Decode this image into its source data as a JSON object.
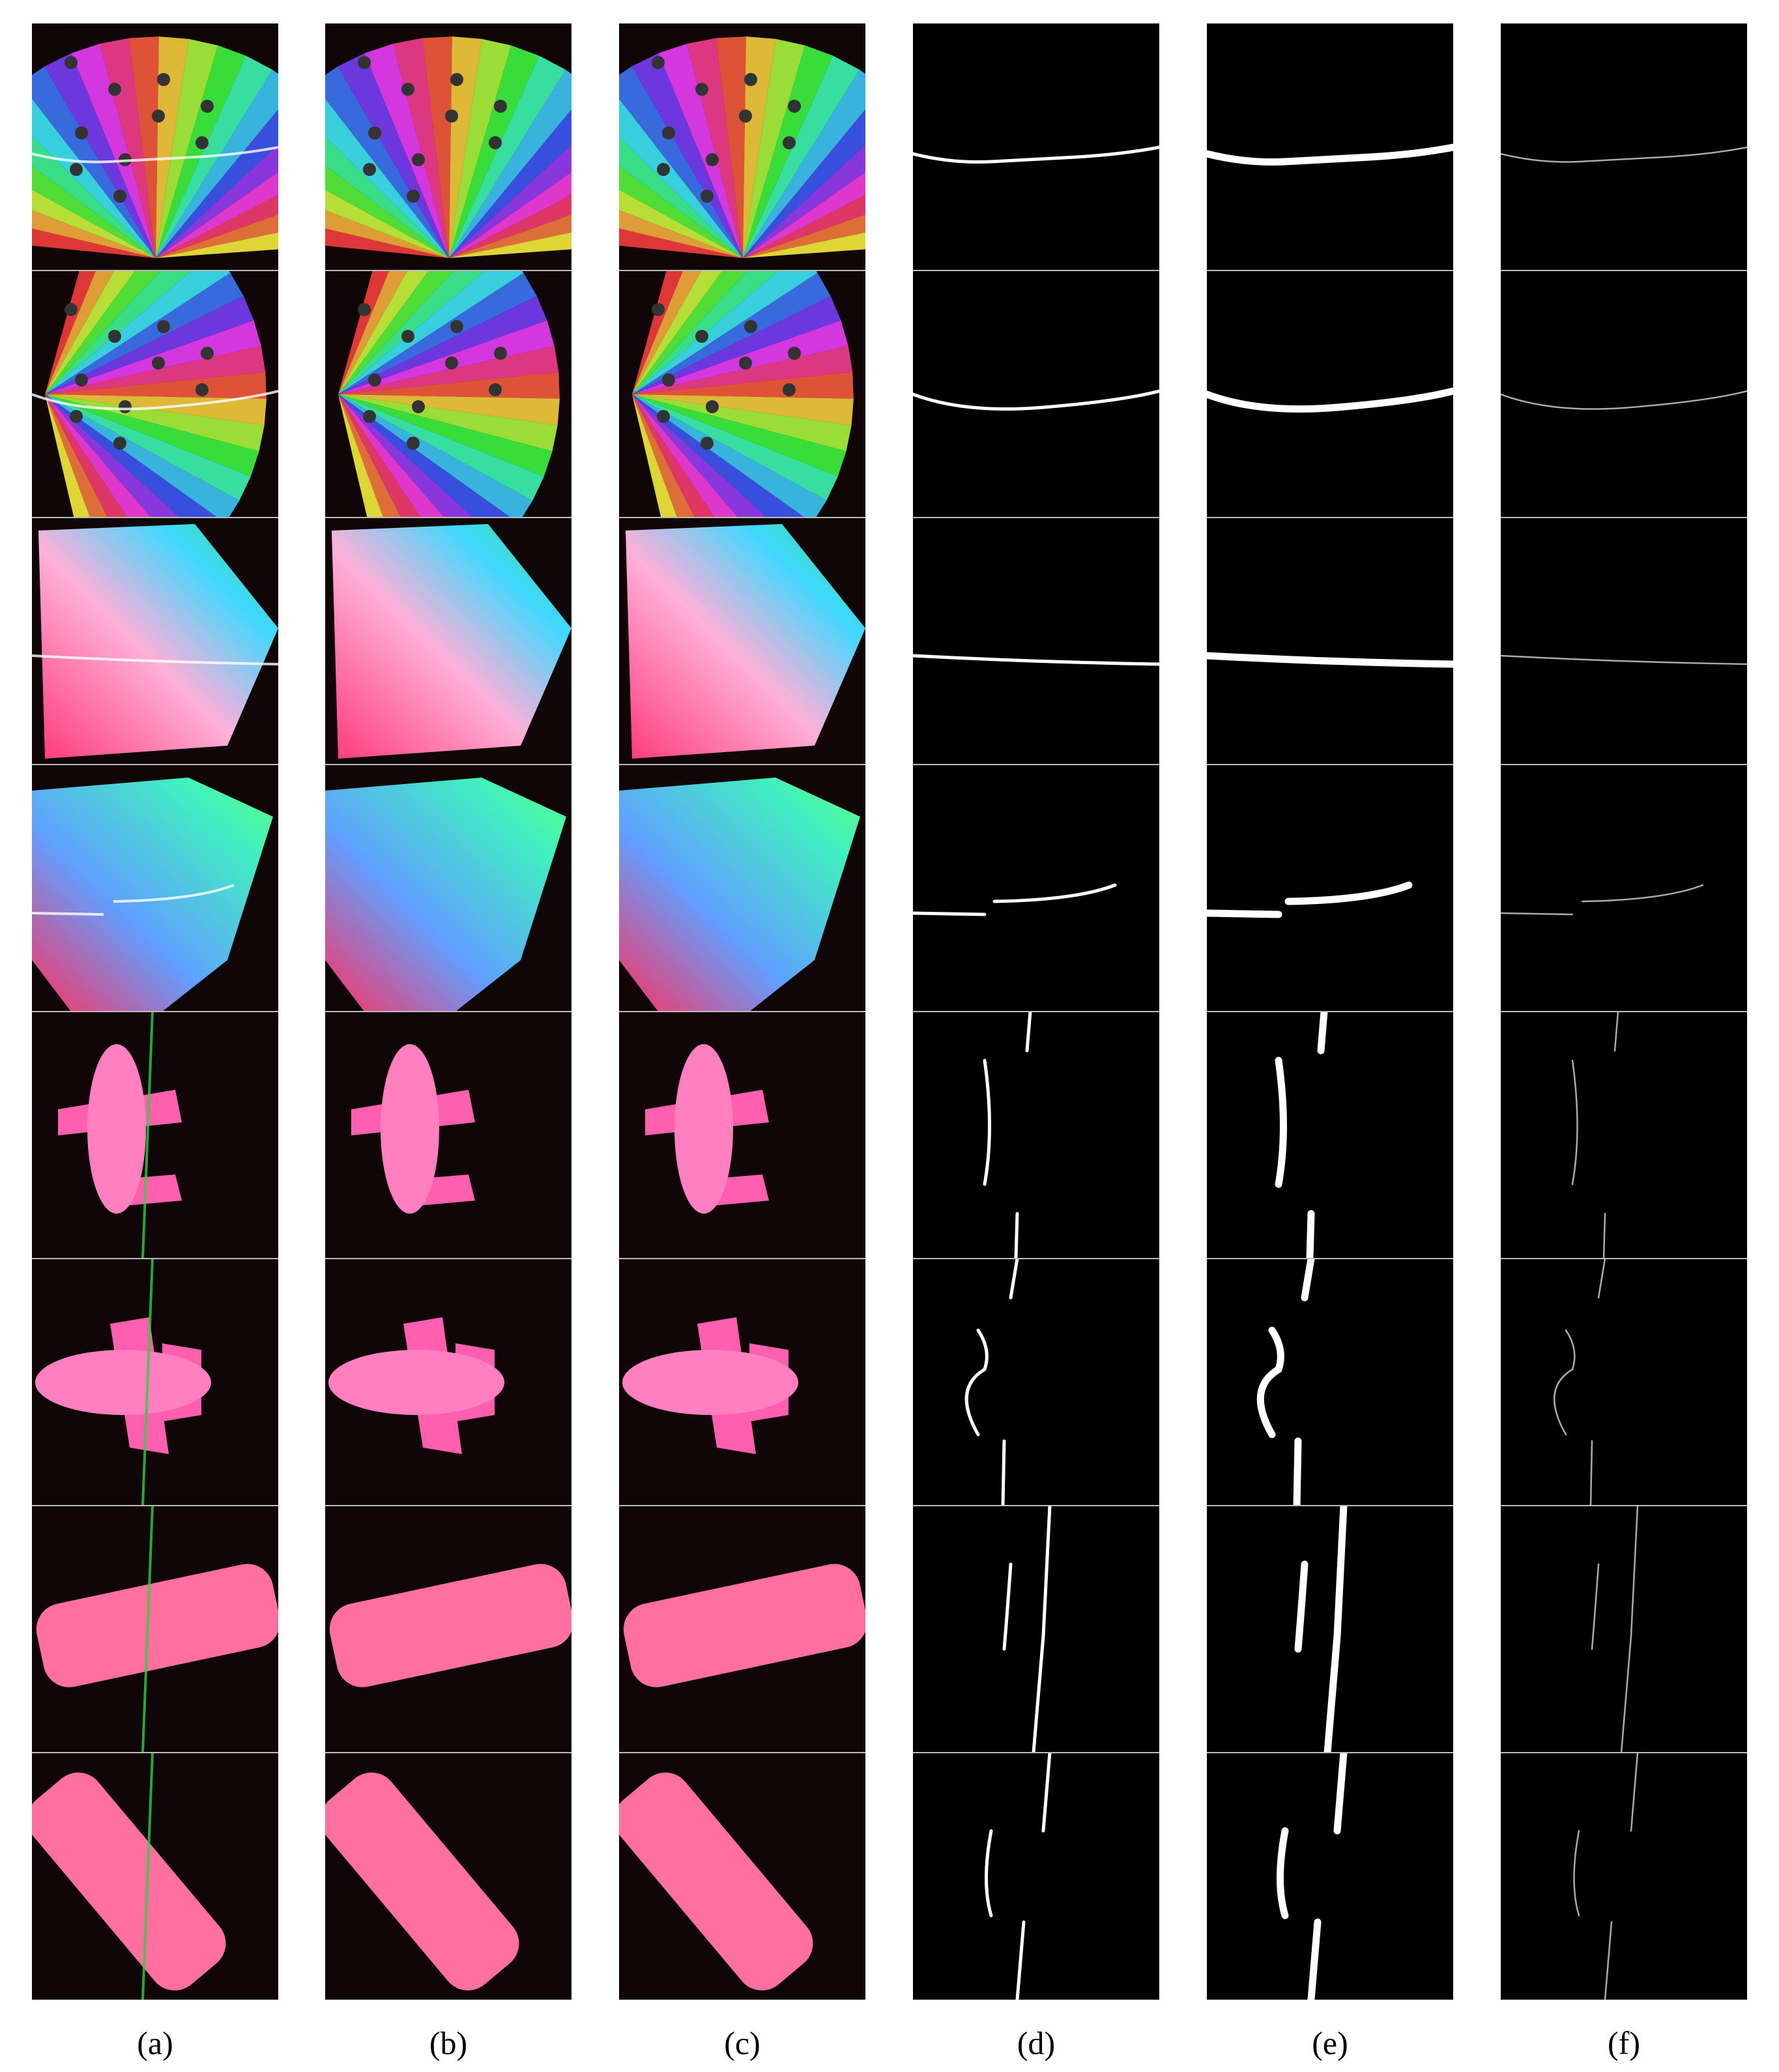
{
  "panel_labels": [
    "(a)",
    "(b)",
    "(c)",
    "(d)",
    "(e)",
    "(f)"
  ]
}
